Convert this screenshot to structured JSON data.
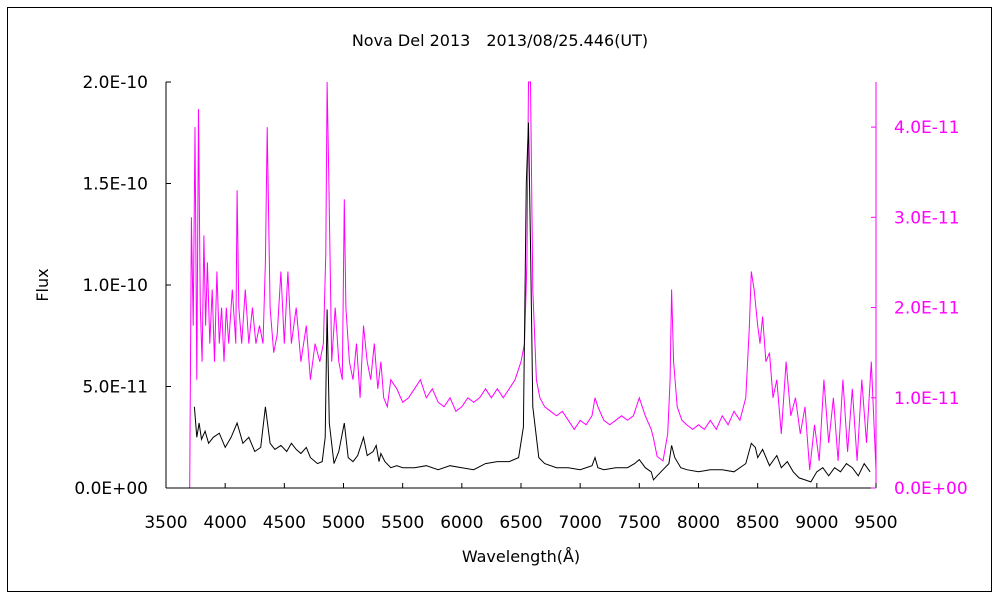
{
  "chart_data": {
    "type": "line",
    "title": "Nova Del 2013　2013/08/25.446(UT)",
    "xlabel": "Wavelength(Å)",
    "ylabel": "Flux",
    "xlim": [
      3500,
      9500
    ],
    "ylim_left": [
      0,
      2e-10
    ],
    "ylim_right": [
      0,
      4.5e-11
    ],
    "x_ticks": [
      "3500",
      "4000",
      "4500",
      "5000",
      "5500",
      "6000",
      "6500",
      "7000",
      "7500",
      "8000",
      "8500",
      "9000",
      "9500"
    ],
    "x_tick_values": [
      3500,
      4000,
      4500,
      5000,
      5500,
      6000,
      6500,
      7000,
      7500,
      8000,
      8500,
      9000,
      9500
    ],
    "y_ticks_left": [
      "0.0E+00",
      "5.0E-11",
      "1.0E-10",
      "1.5E-10",
      "2.0E-10"
    ],
    "y_tick_values_left": [
      0,
      5e-11,
      1e-10,
      1.5e-10,
      2e-10
    ],
    "y_ticks_right": [
      "0.0E+00",
      "1.0E-11",
      "2.0E-11",
      "3.0E-11",
      "4.0E-11"
    ],
    "y_tick_values_right": [
      0,
      1e-11,
      2e-11,
      3e-11,
      4e-11
    ],
    "grid": false,
    "legend": "none",
    "series": [
      {
        "axis": "left",
        "color": "#000000",
        "x": [
          3740,
          3760,
          3780,
          3800,
          3830,
          3860,
          3900,
          3950,
          4000,
          4050,
          4101,
          4150,
          4200,
          4250,
          4300,
          4340,
          4380,
          4420,
          4471,
          4520,
          4560,
          4600,
          4640,
          4686,
          4720,
          4780,
          4820,
          4845,
          4861,
          4880,
          4920,
          4960,
          5007,
          5040,
          5080,
          5120,
          5169,
          5200,
          5250,
          5276,
          5300,
          5316,
          5350,
          5400,
          5450,
          5500,
          5600,
          5700,
          5800,
          5900,
          6000,
          6100,
          6200,
          6300,
          6400,
          6480,
          6520,
          6545,
          6563,
          6580,
          6600,
          6650,
          6700,
          6800,
          6900,
          7000,
          7100,
          7125,
          7150,
          7200,
          7300,
          7400,
          7460,
          7500,
          7550,
          7600,
          7620,
          7650,
          7700,
          7750,
          7773,
          7800,
          7850,
          7900,
          8000,
          8100,
          8200,
          8300,
          8400,
          8446,
          8480,
          8500,
          8542,
          8600,
          8662,
          8700,
          8750,
          8800,
          8850,
          8900,
          8950,
          9000,
          9050,
          9100,
          9150,
          9200,
          9250,
          9300,
          9350,
          9400,
          9450
        ],
        "y": [
          4e-11,
          2.5e-11,
          3.2e-11,
          2.4e-11,
          2.8e-11,
          2.2e-11,
          2.5e-11,
          2.7e-11,
          2e-11,
          2.5e-11,
          3.2e-11,
          2.2e-11,
          2.5e-11,
          1.8e-11,
          2e-11,
          4e-11,
          2.2e-11,
          1.9e-11,
          2.1e-11,
          1.8e-11,
          2.2e-11,
          1.9e-11,
          1.7e-11,
          2e-11,
          1.5e-11,
          1.2e-11,
          1.3e-11,
          2.5e-11,
          8.8e-11,
          3.2e-11,
          1.2e-11,
          1.8e-11,
          3.2e-11,
          1.5e-11,
          1.3e-11,
          1.6e-11,
          2.5e-11,
          1.6e-11,
          1.8e-11,
          2.1e-11,
          1.3e-11,
          1.7e-11,
          1.3e-11,
          1e-11,
          1.1e-11,
          1e-11,
          1e-11,
          1.1e-11,
          9e-12,
          1.1e-11,
          1e-11,
          9e-12,
          1.2e-11,
          1.3e-11,
          1.3e-11,
          1.5e-11,
          3e-11,
          1.5e-10,
          1.8e-10,
          1.2e-10,
          4e-11,
          1.5e-11,
          1.2e-11,
          1e-11,
          1e-11,
          9e-12,
          1.1e-11,
          1.5e-11,
          1e-11,
          9e-12,
          1e-11,
          1e-11,
          1.2e-11,
          1.4e-11,
          1e-11,
          8e-12,
          4e-12,
          6e-12,
          9e-12,
          1.2e-11,
          2.1e-11,
          1.5e-11,
          1e-11,
          9e-12,
          8e-12,
          9e-12,
          9e-12,
          8e-12,
          1.2e-11,
          2.2e-11,
          2e-11,
          1.5e-11,
          1.9e-11,
          1.1e-11,
          1.6e-11,
          1e-11,
          1.3e-11,
          8e-12,
          5e-12,
          4e-12,
          3e-12,
          8e-12,
          1e-11,
          6e-12,
          1e-11,
          8e-12,
          1.2e-11,
          1e-11,
          6e-12,
          1.2e-11,
          8e-12
        ]
      },
      {
        "axis": "right",
        "color": "#ff00ff",
        "x": [
          3700,
          3715,
          3730,
          3745,
          3760,
          3775,
          3790,
          3805,
          3820,
          3835,
          3850,
          3870,
          3890,
          3910,
          3930,
          3950,
          3970,
          3990,
          4010,
          4030,
          4060,
          4090,
          4101,
          4115,
          4140,
          4170,
          4200,
          4230,
          4260,
          4290,
          4320,
          4340,
          4355,
          4380,
          4410,
          4440,
          4471,
          4500,
          4530,
          4560,
          4600,
          4640,
          4686,
          4720,
          4760,
          4800,
          4830,
          4850,
          4861,
          4875,
          4900,
          4930,
          4960,
          4990,
          5007,
          5020,
          5050,
          5080,
          5110,
          5140,
          5169,
          5200,
          5230,
          5260,
          5290,
          5316,
          5340,
          5370,
          5400,
          5450,
          5500,
          5550,
          5600,
          5650,
          5700,
          5750,
          5800,
          5850,
          5900,
          5950,
          6000,
          6050,
          6100,
          6150,
          6200,
          6250,
          6300,
          6350,
          6400,
          6450,
          6500,
          6530,
          6550,
          6563,
          6580,
          6600,
          6630,
          6660,
          6700,
          6750,
          6800,
          6850,
          6900,
          6950,
          7000,
          7050,
          7100,
          7125,
          7150,
          7200,
          7250,
          7300,
          7350,
          7400,
          7450,
          7500,
          7550,
          7600,
          7620,
          7650,
          7700,
          7740,
          7760,
          7773,
          7790,
          7820,
          7860,
          7900,
          7950,
          8000,
          8050,
          8100,
          8150,
          8200,
          8250,
          8300,
          8350,
          8400,
          8430,
          8446,
          8470,
          8500,
          8520,
          8542,
          8570,
          8600,
          8630,
          8662,
          8700,
          8740,
          8780,
          8820,
          8860,
          8900,
          8940,
          8980,
          9020,
          9060,
          9100,
          9140,
          9180,
          9220,
          9260,
          9300,
          9340,
          9380,
          9420,
          9460,
          9500
        ],
        "y": [
          0,
          3e-11,
          1.8e-11,
          4e-11,
          1.2e-11,
          4.2e-11,
          2e-11,
          1.4e-11,
          2.8e-11,
          1.8e-11,
          2.5e-11,
          1.6e-11,
          2.2e-11,
          1.4e-11,
          2.4e-11,
          1.6e-11,
          2e-11,
          1.4e-11,
          2e-11,
          1.6e-11,
          2.2e-11,
          1.6e-11,
          3.3e-11,
          2e-11,
          1.6e-11,
          2.2e-11,
          1.6e-11,
          2e-11,
          1.6e-11,
          1.8e-11,
          1.6e-11,
          2.5e-11,
          4e-11,
          2e-11,
          1.5e-11,
          1.7e-11,
          2.4e-11,
          1.6e-11,
          2.4e-11,
          1.6e-11,
          2e-11,
          1.4e-11,
          1.8e-11,
          1.2e-11,
          1.6e-11,
          1.4e-11,
          1.6e-11,
          2.6e-11,
          4.5e-11,
          3.5e-11,
          1.4e-11,
          2e-11,
          1.4e-11,
          1.2e-11,
          3.2e-11,
          2e-11,
          1.4e-11,
          1.2e-11,
          1.6e-11,
          1e-11,
          1.8e-11,
          1.4e-11,
          1.2e-11,
          1.6e-11,
          1.1e-11,
          1.4e-11,
          1e-11,
          9e-12,
          1.2e-11,
          1.1e-11,
          9.5e-12,
          1e-11,
          1.1e-11,
          1.2e-11,
          1e-11,
          1.1e-11,
          9.5e-12,
          9e-12,
          1e-11,
          8.5e-12,
          9e-12,
          1e-11,
          9.5e-12,
          1e-11,
          1.1e-11,
          1e-11,
          1.1e-11,
          1e-11,
          1.1e-11,
          1.2e-11,
          1.4e-11,
          1.6e-11,
          2.5e-11,
          4.5e-11,
          4.5e-11,
          2.2e-11,
          1.2e-11,
          1e-11,
          9e-12,
          8.5e-12,
          8e-12,
          8.5e-12,
          7.5e-12,
          6.5e-12,
          7.5e-12,
          7e-12,
          8e-12,
          1e-11,
          9e-12,
          7.5e-12,
          7e-12,
          7.5e-12,
          8e-12,
          7.5e-12,
          8e-12,
          1e-11,
          8e-12,
          6.5e-12,
          5.5e-12,
          3.5e-12,
          3e-12,
          6e-12,
          1.2e-11,
          2.2e-11,
          1.4e-11,
          9e-12,
          7.5e-12,
          7e-12,
          6.5e-12,
          7e-12,
          6.5e-12,
          7.5e-12,
          6.5e-12,
          8e-12,
          7e-12,
          8.5e-12,
          7.5e-12,
          1e-11,
          1.8e-11,
          2.4e-11,
          2.2e-11,
          1.8e-11,
          1.6e-11,
          1.9e-11,
          1.4e-11,
          1.5e-11,
          1e-11,
          1.2e-11,
          6e-12,
          1.4e-11,
          8e-12,
          1e-11,
          6e-12,
          9e-12,
          2e-12,
          7e-12,
          3e-12,
          1.2e-11,
          5e-12,
          1e-11,
          3e-12,
          1.2e-11,
          4e-12,
          1.1e-11,
          3e-12,
          1.2e-11,
          5e-12,
          1.4e-11,
          2e-12
        ]
      }
    ]
  }
}
